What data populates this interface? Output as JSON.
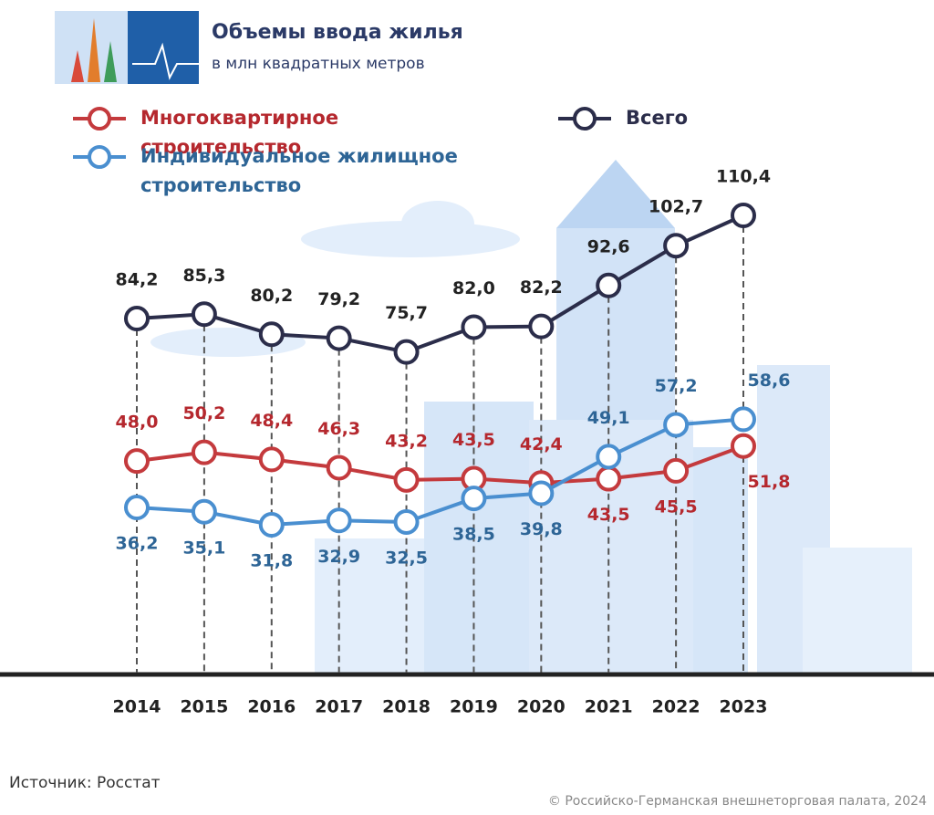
{
  "chart_data": {
    "type": "line",
    "title": "Объемы ввода жилья",
    "subtitle": "в млн квадратных метров",
    "categories": [
      "2014",
      "2015",
      "2016",
      "2017",
      "2018",
      "2019",
      "2020",
      "2021",
      "2022",
      "2023"
    ],
    "series": [
      {
        "name": "Многоквартирное строительство",
        "color": "#c43a3d",
        "values": [
          48.0,
          50.2,
          48.4,
          46.3,
          43.2,
          43.5,
          42.4,
          43.5,
          45.5,
          51.8
        ],
        "value_labels": [
          "48,0",
          "50,2",
          "48,4",
          "46,3",
          "43,2",
          "43,5",
          "42,4",
          "43,5",
          "45,5",
          "51,8"
        ]
      },
      {
        "name": "Всего",
        "color": "#2b2d4a",
        "values": [
          84.2,
          85.3,
          80.2,
          79.2,
          75.7,
          82.0,
          82.2,
          92.6,
          102.7,
          110.4
        ],
        "value_labels": [
          "84,2",
          "85,3",
          "80,2",
          "79,2",
          "75,7",
          "82,0",
          "82,2",
          "92,6",
          "102,7",
          "110,4"
        ]
      },
      {
        "name": "Индивидуальное жилищное строительство",
        "color": "#4a8fd0",
        "values": [
          36.2,
          35.1,
          31.8,
          32.9,
          32.5,
          38.5,
          39.8,
          49.1,
          57.2,
          58.6
        ],
        "value_labels": [
          "36,2",
          "35,1",
          "31,8",
          "32,9",
          "32,5",
          "38,5",
          "39,8",
          "49,1",
          "57,2",
          "58,6"
        ]
      }
    ],
    "source": "Источник: Росстат",
    "copyright": "© Российско-Германская внешнеторговая палата, 2024"
  }
}
